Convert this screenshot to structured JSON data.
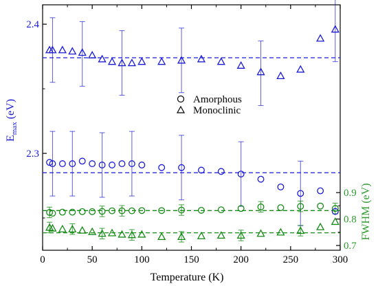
{
  "chart_data": {
    "type": "scatter",
    "title": "",
    "xlabel": "Temperature (K)",
    "ylabel_left_main": "E",
    "ylabel_left_sub": "max",
    "ylabel_left_unit": " (eV)",
    "ylabel_right": "FWHM (eV)",
    "xlim": [
      0,
      300
    ],
    "ylim_left": [
      2.225,
      2.415
    ],
    "yticks_left": [
      2.3,
      2.4
    ],
    "yticks_left_labels": [
      "2.3",
      "2.4"
    ],
    "ylim_right": [
      0.682,
      1.61
    ],
    "yticks_right": [
      0.7,
      0.8,
      0.9
    ],
    "yticks_right_labels": [
      "0.7",
      "0.8",
      "0.9"
    ],
    "xticks": [
      0,
      50,
      100,
      150,
      200,
      250,
      300
    ],
    "xticks_labels": [
      "0",
      "50",
      "100",
      "150",
      "200",
      "250",
      "300"
    ],
    "legend": [
      {
        "label": "Amorphous",
        "marker": "circle"
      },
      {
        "label": "Monoclinic",
        "marker": "triangle"
      }
    ],
    "legend_position": "center-right",
    "colors": {
      "emax": "#1a1ad6",
      "fwhm": "#158a15",
      "axis": "#000000",
      "right_axis_label": "#2e9a2e"
    },
    "series": [
      {
        "id": "emax_monoclinic",
        "axis": "left",
        "marker": "triangle",
        "color": "#1a1ad6",
        "x": [
          7,
          10,
          20,
          30,
          40,
          50,
          60,
          70,
          80,
          90,
          100,
          120,
          140,
          160,
          180,
          200,
          220,
          240,
          260,
          280,
          295
        ],
        "y": [
          2.38,
          2.38,
          2.38,
          2.379,
          2.378,
          2.376,
          2.373,
          2.371,
          2.37,
          2.37,
          2.371,
          2.371,
          2.372,
          2.373,
          2.371,
          2.368,
          2.363,
          2.36,
          2.365,
          2.389,
          2.396
        ],
        "errors": [
          {
            "x": 10,
            "y": 2.38,
            "err": 0.025
          },
          {
            "x": 40,
            "y": 2.377,
            "err": 0.025
          },
          {
            "x": 80,
            "y": 2.37,
            "err": 0.025
          },
          {
            "x": 140,
            "y": 2.372,
            "err": 0.025
          },
          {
            "x": 220,
            "y": 2.362,
            "err": 0.025
          },
          {
            "x": 295,
            "y": 2.396,
            "err": 0.025
          }
        ],
        "fit": {
          "x0": 0,
          "x1": 300,
          "y": 2.374
        }
      },
      {
        "id": "emax_amorphous",
        "axis": "left",
        "marker": "circle",
        "color": "#1a1ad6",
        "x": [
          7,
          10,
          20,
          30,
          40,
          50,
          60,
          70,
          80,
          90,
          100,
          120,
          140,
          160,
          180,
          200,
          220,
          240,
          260,
          280,
          295
        ],
        "y": [
          2.293,
          2.292,
          2.292,
          2.292,
          2.294,
          2.292,
          2.291,
          2.291,
          2.292,
          2.292,
          2.291,
          2.289,
          2.289,
          2.287,
          2.286,
          2.284,
          2.28,
          2.274,
          2.269,
          2.271,
          2.255
        ],
        "errors": [
          {
            "x": 10,
            "y": 2.292,
            "err": 0.025
          },
          {
            "x": 30,
            "y": 2.292,
            "err": 0.025
          },
          {
            "x": 60,
            "y": 2.291,
            "err": 0.025
          },
          {
            "x": 90,
            "y": 2.292,
            "err": 0.025
          },
          {
            "x": 140,
            "y": 2.289,
            "err": 0.025
          },
          {
            "x": 200,
            "y": 2.284,
            "err": 0.025
          },
          {
            "x": 260,
            "y": 2.269,
            "err": 0.025
          }
        ],
        "fit": {
          "x0": 0,
          "x1": 300,
          "y": 2.285
        }
      },
      {
        "id": "fwhm_amorphous",
        "axis": "right",
        "marker": "circle",
        "color": "#158a15",
        "x": [
          7,
          10,
          20,
          30,
          40,
          50,
          60,
          70,
          80,
          90,
          100,
          120,
          140,
          160,
          180,
          200,
          220,
          240,
          260,
          280,
          295
        ],
        "y": [
          0.825,
          0.822,
          0.826,
          0.826,
          0.828,
          0.828,
          0.829,
          0.831,
          0.831,
          0.831,
          0.832,
          0.832,
          0.834,
          0.833,
          0.835,
          0.84,
          0.846,
          0.843,
          0.848,
          0.849,
          0.84
        ],
        "errors": [
          {
            "x": 7,
            "y": 0.825,
            "err": 0.02
          },
          {
            "x": 60,
            "y": 0.829,
            "err": 0.02
          },
          {
            "x": 80,
            "y": 0.831,
            "err": 0.02
          },
          {
            "x": 140,
            "y": 0.834,
            "err": 0.02
          },
          {
            "x": 220,
            "y": 0.846,
            "err": 0.02
          },
          {
            "x": 260,
            "y": 0.848,
            "err": 0.02
          },
          {
            "x": 295,
            "y": 0.84,
            "err": 0.02
          }
        ],
        "fit": {
          "x0": 0,
          "x1": 300,
          "y": 0.832
        }
      },
      {
        "id": "fwhm_monoclinic",
        "axis": "right",
        "marker": "triangle",
        "color": "#158a15",
        "x": [
          7,
          10,
          20,
          30,
          40,
          50,
          60,
          70,
          80,
          90,
          100,
          120,
          140,
          160,
          180,
          200,
          220,
          240,
          260,
          280,
          295
        ],
        "y": [
          0.768,
          0.765,
          0.762,
          0.762,
          0.757,
          0.752,
          0.745,
          0.747,
          0.742,
          0.74,
          0.742,
          0.733,
          0.733,
          0.736,
          0.738,
          0.738,
          0.745,
          0.75,
          0.756,
          0.77,
          0.79
        ],
        "errors": [
          {
            "x": 7,
            "y": 0.768,
            "err": 0.02
          },
          {
            "x": 30,
            "y": 0.762,
            "err": 0.02
          },
          {
            "x": 60,
            "y": 0.745,
            "err": 0.02
          },
          {
            "x": 90,
            "y": 0.74,
            "err": 0.02
          },
          {
            "x": 140,
            "y": 0.733,
            "err": 0.02
          },
          {
            "x": 200,
            "y": 0.738,
            "err": 0.02
          },
          {
            "x": 260,
            "y": 0.756,
            "err": 0.02
          }
        ],
        "fit": {
          "x0": 0,
          "x1": 300,
          "y": 0.748
        }
      }
    ]
  }
}
